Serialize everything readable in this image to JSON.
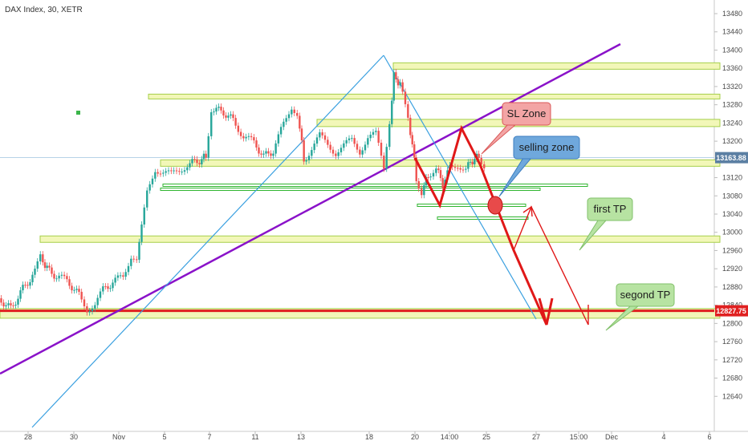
{
  "chart_data": {
    "type": "candlestick",
    "title": "DAX Index, 30, XETR",
    "y_ticks": [
      12640,
      12680,
      12720,
      12760,
      12800,
      12840,
      12880,
      12920,
      12960,
      13000,
      13040,
      13080,
      13120,
      13160,
      13200,
      13240,
      13280,
      13320,
      13360,
      13400,
      13440,
      13480
    ],
    "x_ticks": [
      "28",
      "30",
      "Nov",
      "5",
      "7",
      "11",
      "13",
      "18",
      "20",
      "14:00",
      "25",
      "27",
      "15:00",
      "Dec",
      "4",
      "6"
    ],
    "price_badges": [
      {
        "label": "13163.88",
        "value": 13163.88,
        "color": "#5b7fa3"
      },
      {
        "label": "12827.75",
        "value": 12827.75,
        "color": "#e02020"
      }
    ],
    "zones": [
      {
        "name": "resistance-zone-top",
        "value": 13365
      },
      {
        "name": "resistance-zone-upper",
        "value": 13298
      },
      {
        "name": "sl-zone-band",
        "value": 13240
      },
      {
        "name": "current-zone-band",
        "value": 13152
      },
      {
        "name": "support-zone-middle",
        "value": 12985
      },
      {
        "name": "target-zone-bottom",
        "value": 12822
      }
    ],
    "annotations": [
      "SL Zone",
      "selling zone",
      "first TP",
      "segond TP"
    ],
    "colors": {
      "up": "#26a69a",
      "down": "#ef5350",
      "zone_fill": "#f2f7b8",
      "zone_stroke": "#a6cf4a",
      "trendline": "#8a12c9",
      "channel": "#3aa0e0",
      "arrow": "#e01818"
    }
  }
}
